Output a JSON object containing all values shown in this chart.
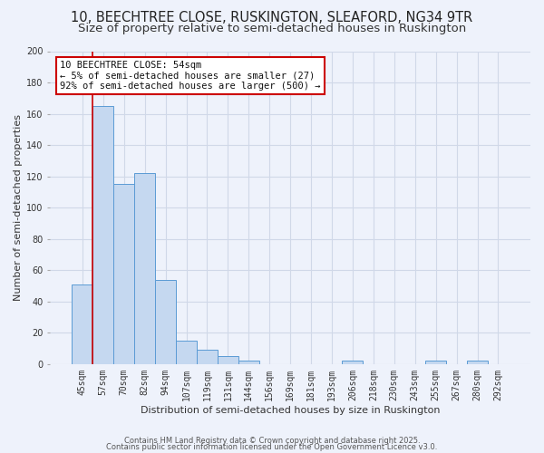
{
  "title1": "10, BEECHTREE CLOSE, RUSKINGTON, SLEAFORD, NG34 9TR",
  "title2": "Size of property relative to semi-detached houses in Ruskington",
  "xlabel": "Distribution of semi-detached houses by size in Ruskington",
  "ylabel_full": "Number of semi-detached properties",
  "categories": [
    "45sqm",
    "57sqm",
    "70sqm",
    "82sqm",
    "94sqm",
    "107sqm",
    "119sqm",
    "131sqm",
    "144sqm",
    "156sqm",
    "169sqm",
    "181sqm",
    "193sqm",
    "206sqm",
    "218sqm",
    "230sqm",
    "243sqm",
    "255sqm",
    "267sqm",
    "280sqm",
    "292sqm"
  ],
  "values": [
    51,
    165,
    115,
    122,
    54,
    15,
    9,
    5,
    2,
    0,
    0,
    0,
    0,
    2,
    0,
    0,
    0,
    2,
    0,
    2,
    0
  ],
  "bar_color": "#c5d8f0",
  "bar_edge_color": "#5b9bd5",
  "grid_color": "#d0d8e8",
  "background_color": "#eef2fb",
  "red_line_color": "#cc0000",
  "annotation_title": "10 BEECHTREE CLOSE: 54sqm",
  "annotation_line1": "← 5% of semi-detached houses are smaller (27)",
  "annotation_line2": "92% of semi-detached houses are larger (500) →",
  "annotation_box_color": "#ffffff",
  "annotation_border_color": "#cc0000",
  "footer1": "Contains HM Land Registry data © Crown copyright and database right 2025.",
  "footer2": "Contains public sector information licensed under the Open Government Licence v3.0.",
  "ylim": [
    0,
    200
  ],
  "yticks": [
    0,
    20,
    40,
    60,
    80,
    100,
    120,
    140,
    160,
    180,
    200
  ],
  "title_fontsize": 10.5,
  "subtitle_fontsize": 9.5,
  "tick_fontsize": 7,
  "axis_label_fontsize": 8,
  "annotation_fontsize": 7.5,
  "footer_fontsize": 6
}
